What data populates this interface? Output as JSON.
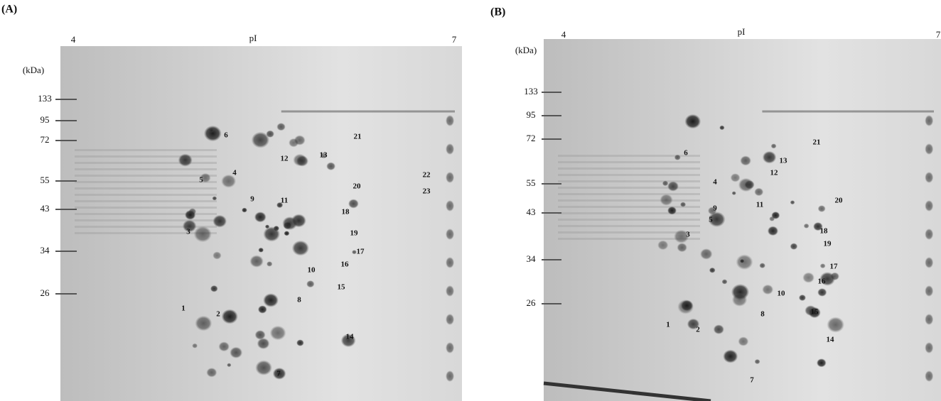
{
  "panels": [
    {
      "label": "(A)",
      "axis_label": "pI",
      "pi_start": "4",
      "pi_end": "7",
      "mw_unit": "(kDa)",
      "mw_markers": [
        133,
        95,
        72,
        55,
        43,
        34,
        26
      ],
      "spots": [
        1,
        2,
        3,
        4,
        5,
        6,
        7,
        8,
        9,
        10,
        11,
        12,
        13,
        14,
        15,
        16,
        17,
        18,
        19,
        20,
        21,
        22,
        23
      ]
    },
    {
      "label": "(B)",
      "axis_label": "pI",
      "pi_start": "4",
      "pi_end": "7",
      "mw_unit": "(kDa)",
      "mw_markers": [
        133,
        95,
        72,
        55,
        43,
        34,
        26
      ],
      "spots": [
        1,
        2,
        3,
        4,
        5,
        6,
        7,
        8,
        9,
        10,
        11,
        12,
        13,
        14,
        15,
        16,
        17,
        18,
        19,
        20,
        21
      ]
    }
  ]
}
